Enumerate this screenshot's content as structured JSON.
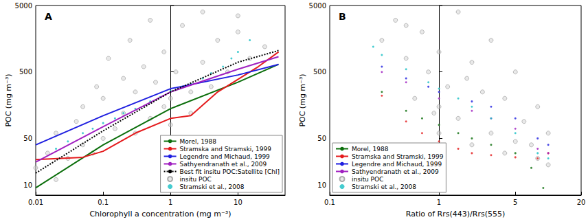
{
  "chart_data": [
    {
      "type": "scatter",
      "title": "A",
      "log": true,
      "grid": false,
      "legend": "lower right",
      "x_label": "Chlorophyll a concentration (mg m⁻³)",
      "y_label": "POC (mg m⁻³)",
      "xlim": [
        0.01,
        50
      ],
      "ylim": [
        7,
        5000
      ],
      "xticks": [
        0.01,
        0.1,
        1,
        10
      ],
      "yticks": [
        10,
        50,
        500,
        5000
      ],
      "series": [
        {
          "name": "Morel, 1988",
          "type": "line",
          "color": "#0b6e0b",
          "line_style": "solid",
          "x": [
            0.01,
            0.1,
            1,
            10,
            40
          ],
          "values": [
            9,
            40,
            140,
            350,
            650
          ]
        },
        {
          "name": "Stramska and Stramski, 1999",
          "type": "line",
          "color": "#e41a1c",
          "line_style": "solid",
          "x": [
            0.01,
            0.05,
            0.1,
            0.3,
            1,
            2,
            5,
            20,
            40
          ],
          "values": [
            24,
            26,
            32,
            60,
            100,
            110,
            250,
            600,
            1000
          ]
        },
        {
          "name": "Legendre and Michaud, 1999",
          "type": "line",
          "color": "#1f1fe0",
          "line_style": "solid",
          "x": [
            0.01,
            0.1,
            1,
            10,
            40
          ],
          "values": [
            40,
            110,
            280,
            450,
            650
          ]
        },
        {
          "name": "Sathyendranath et al., 2009",
          "type": "line",
          "color": "#a020c0",
          "line_style": "solid",
          "x": [
            0.01,
            0.1,
            1,
            10,
            40
          ],
          "values": [
            22,
            75,
            250,
            550,
            850
          ]
        },
        {
          "name": "Best fit insitu POC:Satellite [Chl]",
          "type": "line",
          "color": "#000000",
          "line_style": "dotted",
          "x": [
            0.01,
            0.1,
            1,
            10,
            40
          ],
          "values": [
            15,
            65,
            250,
            700,
            1050
          ]
        },
        {
          "name": "insitu POC",
          "type": "scatter",
          "color": "#999999",
          "marker": "circle",
          "x": [
            0.01,
            0.015,
            0.02,
            0.02,
            0.03,
            0.04,
            0.05,
            0.05,
            0.07,
            0.08,
            0.1,
            0.1,
            0.12,
            0.15,
            0.2,
            0.2,
            0.25,
            0.3,
            0.3,
            0.4,
            0.5,
            0.5,
            0.6,
            0.8,
            0.8,
            1,
            1,
            1.2,
            1.5,
            2,
            2,
            3,
            3,
            4,
            5,
            7,
            10,
            10,
            15,
            25
          ],
          "values": [
            18,
            30,
            12,
            60,
            25,
            90,
            40,
            150,
            30,
            300,
            50,
            200,
            800,
            70,
            120,
            400,
            1500,
            60,
            250,
            600,
            100,
            3000,
            350,
            150,
            1000,
            200,
            80,
            500,
            2500,
            250,
            120,
            700,
            4000,
            300,
            1500,
            500,
            2000,
            3500,
            800,
            1200
          ]
        },
        {
          "name": "Stramski et al., 2008",
          "type": "scatter",
          "color": "#17bfc4",
          "marker": "dot",
          "x": [
            0.02,
            0.03,
            0.05,
            0.07,
            0.1,
            0.15,
            0.2,
            0.3,
            0.5,
            0.7,
            1,
            1.5,
            2,
            3,
            4,
            6,
            8,
            10,
            15
          ],
          "values": [
            35,
            45,
            60,
            70,
            85,
            100,
            120,
            140,
            180,
            210,
            260,
            300,
            330,
            400,
            480,
            600,
            800,
            1000,
            1500
          ]
        }
      ]
    },
    {
      "type": "scatter",
      "title": "B",
      "log": true,
      "grid": false,
      "legend": "lower left",
      "x_label": "Ratio of Rrs(443)/Rrs(555)",
      "y_label": "POC (mg m⁻³)",
      "xlim": [
        0.1,
        20
      ],
      "ylim": [
        7,
        5000
      ],
      "xticks": [
        0.1,
        1,
        5,
        20
      ],
      "yticks": [
        10,
        50,
        500,
        5000
      ],
      "series": [
        {
          "name": "Morel, 1988",
          "type": "scatter",
          "color": "#0b6e0b",
          "marker": "dot",
          "x": [
            0.3,
            0.5,
            0.7,
            1,
            1.5,
            2,
            3,
            5,
            7,
            9
          ],
          "values": [
            250,
            130,
            100,
            80,
            60,
            50,
            40,
            30,
            18,
            9
          ]
        },
        {
          "name": "Stramska and Stramski, 1999",
          "type": "scatter",
          "color": "#e41a1c",
          "marker": "dot",
          "x": [
            0.3,
            0.5,
            0.7,
            1,
            1.5,
            2,
            3,
            5,
            8,
            10
          ],
          "values": [
            220,
            90,
            60,
            45,
            35,
            30,
            28,
            26,
            25,
            30
          ]
        },
        {
          "name": "Legendre and Michaud, 1999",
          "type": "scatter",
          "color": "#1f1fe0",
          "marker": "dot",
          "x": [
            0.3,
            0.5,
            0.8,
            1,
            2,
            3,
            5,
            8,
            10
          ],
          "values": [
            600,
            400,
            300,
            250,
            180,
            150,
            100,
            50,
            40
          ]
        },
        {
          "name": "Sathyendranath et al., 2009",
          "type": "scatter",
          "color": "#a020c0",
          "marker": "dot",
          "x": [
            0.3,
            0.5,
            1,
            2,
            3,
            5,
            8,
            10
          ],
          "values": [
            500,
            350,
            200,
            130,
            100,
            70,
            35,
            30
          ]
        },
        {
          "name": "insitu POC",
          "type": "scatter",
          "color": "#999999",
          "marker": "circle",
          "x": [
            0.3,
            0.4,
            0.5,
            0.6,
            0.7,
            0.8,
            1,
            1,
            1,
            1.2,
            1.5,
            1.5,
            2,
            2,
            2.5,
            3,
            3,
            4,
            4,
            5,
            5,
            6,
            7,
            8,
            8,
            10,
            10,
            0.5,
            0.9,
            1.8
          ],
          "values": [
            1500,
            3000,
            800,
            200,
            2000,
            500,
            1000,
            150,
            60,
            300,
            4000,
            100,
            700,
            40,
            250,
            1500,
            60,
            200,
            30,
            500,
            45,
            90,
            40,
            150,
            25,
            60,
            20,
            2500,
            120,
            400
          ]
        },
        {
          "name": "Stramski et al., 2008",
          "type": "scatter",
          "color": "#17bfc4",
          "marker": "dot",
          "x": [
            0.25,
            0.3,
            0.5,
            0.8,
            1,
            1.5,
            2,
            3,
            5,
            8,
            10
          ],
          "values": [
            1200,
            900,
            550,
            350,
            280,
            200,
            150,
            100,
            60,
            30,
            25
          ]
        }
      ]
    }
  ]
}
